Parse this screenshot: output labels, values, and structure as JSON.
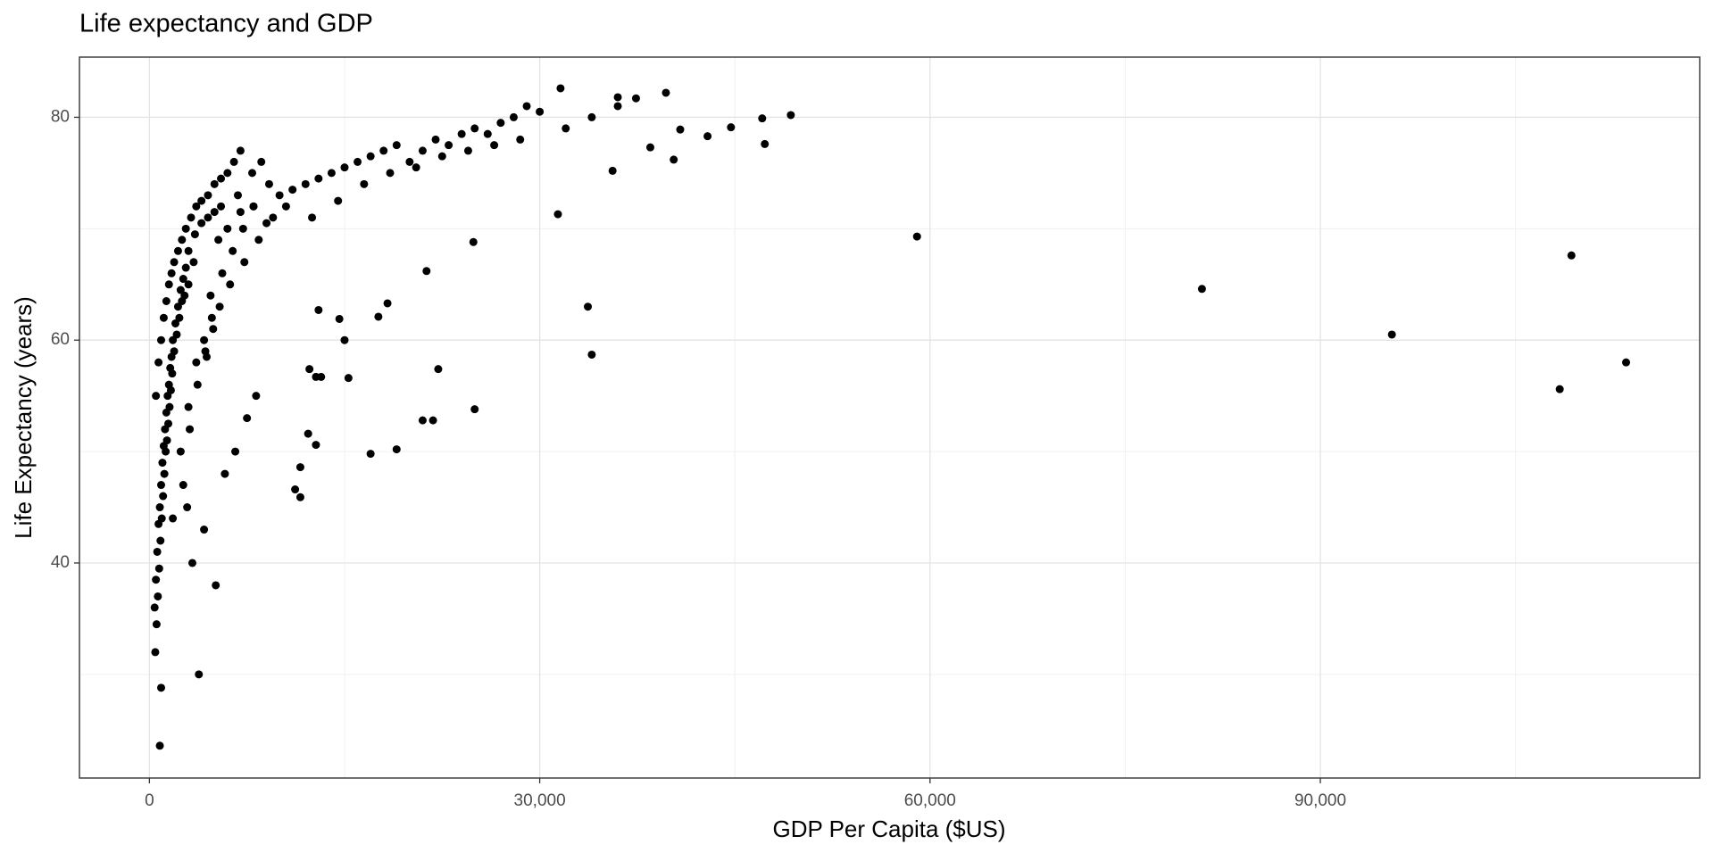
{
  "chart_data": {
    "type": "scatter",
    "title": "Life expectancy and GDP",
    "x_label": "GDP Per Capita ($US)",
    "y_label": "Life Expectancy (years)",
    "xlim": [
      -5378,
      119160
    ],
    "ylim": [
      20.7,
      85.4
    ],
    "xticks": [
      0,
      {
        "value": 30000,
        "label": "30,000"
      },
      {
        "value": 60000,
        "label": "60,000"
      },
      {
        "value": 90000,
        "label": "90,000"
      }
    ],
    "yticks": [
      40,
      60,
      80
    ],
    "xminor": [
      15000,
      45000,
      75000,
      105000
    ],
    "yminor": [
      30,
      50,
      70
    ],
    "grid": true,
    "color": "#000000",
    "x": [
      59000,
      80900,
      95500,
      108400,
      109300,
      113500,
      33700,
      34000,
      24900,
      25000,
      31400,
      47300,
      47100,
      49300,
      39700,
      31600,
      40300,
      42900,
      44700,
      38500,
      40800,
      36000,
      37400,
      35600,
      17000,
      19000,
      21000,
      21800,
      22200,
      21300,
      17600,
      18300,
      15300,
      15000,
      14600,
      13200,
      12800,
      11600,
      11200,
      11600,
      12800,
      12200,
      12300,
      13000,
      3800,
      800,
      900,
      400,
      500,
      600,
      700,
      800,
      900,
      1000,
      1100,
      1200,
      1300,
      1400,
      1500,
      1600,
      1700,
      1800,
      2000,
      2200,
      2400,
      2600,
      2800,
      450,
      550,
      650,
      750,
      850,
      950,
      1050,
      1150,
      1250,
      1350,
      1450,
      1550,
      1650,
      1750,
      1900,
      2100,
      2300,
      2500,
      2700,
      3000,
      500,
      700,
      900,
      1100,
      1300,
      1500,
      1700,
      1900,
      2200,
      2500,
      2800,
      3200,
      3600,
      4000,
      4500,
      5000,
      5500,
      6000,
      6500,
      7000,
      3000,
      3500,
      4000,
      4500,
      5000,
      5500,
      6000,
      7000,
      8000,
      9000,
      10000,
      11000,
      12000,
      13000,
      14000,
      15000,
      16000,
      17000,
      18000,
      19000,
      20000,
      21000,
      22000,
      23000,
      24000,
      25000,
      26000,
      27000,
      28000,
      29000,
      30000,
      32000,
      34000,
      36000,
      3300,
      4200,
      5800,
      6600,
      7500,
      8200,
      2600,
      3100,
      3700,
      4300,
      4900,
      5400,
      6200,
      7300,
      8400,
      9500,
      10500,
      12500,
      14500,
      16500,
      18500,
      20500,
      22500,
      24500,
      26500,
      28500,
      1800,
      2400,
      3000,
      3600,
      4200,
      4800,
      5600,
      6400,
      7200,
      8000,
      9200,
      3400,
      2900,
      4700,
      5300,
      6800,
      7900,
      8600,
      5100,
      4400
    ],
    "values": [
      69.3,
      64.6,
      60.5,
      55.6,
      67.6,
      58.0,
      63.0,
      58.7,
      68.8,
      53.8,
      71.3,
      77.6,
      79.9,
      80.2,
      82.2,
      82.6,
      76.2,
      78.3,
      79.1,
      77.3,
      78.9,
      81.8,
      81.7,
      75.2,
      49.8,
      50.2,
      52.8,
      52.8,
      57.4,
      66.2,
      62.1,
      63.3,
      56.6,
      60.0,
      61.9,
      56.7,
      56.7,
      45.9,
      46.6,
      48.6,
      50.6,
      51.6,
      57.4,
      62.7,
      30.0,
      23.6,
      28.8,
      36.0,
      38.5,
      41.0,
      43.5,
      45.0,
      47.0,
      49.0,
      50.5,
      52.0,
      53.5,
      55.0,
      56.0,
      57.5,
      58.5,
      60.0,
      61.5,
      63.0,
      64.5,
      65.5,
      66.5,
      32.0,
      34.5,
      37.0,
      39.5,
      42.0,
      44.0,
      46.0,
      48.0,
      50.0,
      51.0,
      52.5,
      54.0,
      55.5,
      57.0,
      59.0,
      60.5,
      62.0,
      63.5,
      64.0,
      65.0,
      55.0,
      58.0,
      60.0,
      62.0,
      63.5,
      65.0,
      66.0,
      67.0,
      68.0,
      69.0,
      70.0,
      71.0,
      72.0,
      72.5,
      73.0,
      74.0,
      74.5,
      75.0,
      76.0,
      77.0,
      68.0,
      69.5,
      70.5,
      71.0,
      71.5,
      72.0,
      70.0,
      71.5,
      72.0,
      70.5,
      73.0,
      73.5,
      74.0,
      74.5,
      75.0,
      75.5,
      76.0,
      76.5,
      77.0,
      77.5,
      76.0,
      77.0,
      78.0,
      77.5,
      78.5,
      79.0,
      78.5,
      79.5,
      80.0,
      81.0,
      80.5,
      79.0,
      80.0,
      81.0,
      40.0,
      43.0,
      48.0,
      50.0,
      53.0,
      55.0,
      47.0,
      52.0,
      56.0,
      59.0,
      61.0,
      63.0,
      65.0,
      67.0,
      69.0,
      71.0,
      72.0,
      71.0,
      72.5,
      74.0,
      75.0,
      75.5,
      76.5,
      77.0,
      77.5,
      78.0,
      44.0,
      50.0,
      54.0,
      58.0,
      60.0,
      62.0,
      66.0,
      68.0,
      70.0,
      72.0,
      74.0,
      67.0,
      45.0,
      64.0,
      69.0,
      73.0,
      75.0,
      76.0,
      38.0,
      58.5
    ]
  }
}
